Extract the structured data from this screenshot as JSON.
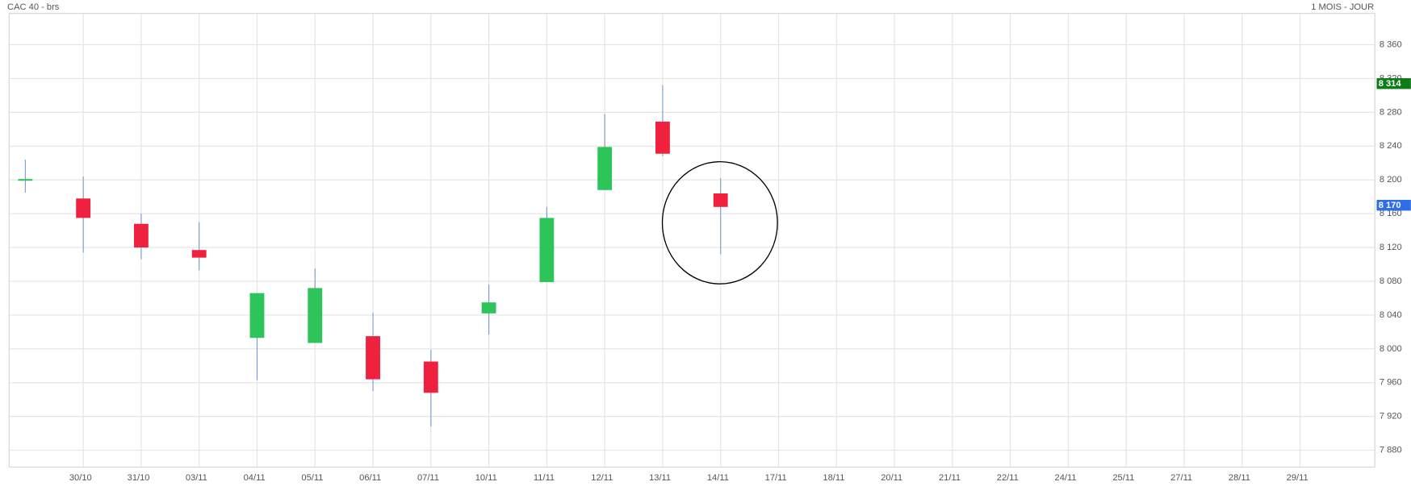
{
  "chart_data": {
    "type": "candlestick",
    "title": "CAC 40 - brs",
    "subtitle": "1 MOIS - JOUR",
    "categories": [
      null,
      "30/10",
      "31/10",
      "03/11",
      "04/11",
      "05/11",
      "06/11",
      "07/11",
      "10/11",
      "11/11",
      "12/11",
      "13/11",
      "14/11",
      "17/11",
      "18/11",
      "20/11",
      "21/11",
      "22/11",
      "24/11",
      "25/11",
      "27/11",
      "28/11",
      "29/11"
    ],
    "series": {
      "open": [
        8199,
        8178,
        8148,
        8117,
        8013,
        8007,
        8015,
        7985,
        8042,
        8079,
        8188,
        8269,
        8184,
        null,
        null,
        null,
        null,
        null,
        null,
        null,
        null,
        null,
        null
      ],
      "high": [
        8224,
        8204,
        8160,
        8150,
        8066,
        8095,
        8043,
        7999,
        8076,
        8168,
        8278,
        8312,
        8202,
        null,
        null,
        null,
        null,
        null,
        null,
        null,
        null,
        null,
        null
      ],
      "low": [
        8185,
        8114,
        8106,
        8093,
        7963,
        8007,
        7950,
        7908,
        8017,
        8079,
        8188,
        8228,
        8112,
        null,
        null,
        null,
        null,
        null,
        null,
        null,
        null,
        null,
        null
      ],
      "close": [
        8201,
        8155,
        8120,
        8108,
        8066,
        8072,
        7964,
        7948,
        8055,
        8155,
        8239,
        8231,
        8168,
        null,
        null,
        null,
        null,
        null,
        null,
        null,
        null,
        null,
        null
      ]
    },
    "up_color": "#2dc55a",
    "down_color": "#f0203f",
    "wick_color": "#7a9cc6",
    "ylim": [
      7860,
      8397
    ],
    "yticks": [
      {
        "value": 7880,
        "label": "7 880"
      },
      {
        "value": 7920,
        "label": "7 920"
      },
      {
        "value": 7960,
        "label": "7 960"
      },
      {
        "value": 8000,
        "label": "8 000"
      },
      {
        "value": 8040,
        "label": "8 040"
      },
      {
        "value": 8080,
        "label": "8 080"
      },
      {
        "value": 8120,
        "label": "8 120"
      },
      {
        "value": 8160,
        "label": "8 160"
      },
      {
        "value": 8200,
        "label": "8 200"
      },
      {
        "value": 8240,
        "label": "8 240"
      },
      {
        "value": 8280,
        "label": "8 280"
      },
      {
        "value": 8320,
        "label": "8 320"
      },
      {
        "value": 8360,
        "label": "8 360"
      }
    ],
    "price_tags": [
      {
        "value": 8314,
        "label": "8 314",
        "color": "#0a7d14"
      },
      {
        "value": 8170,
        "label": "8 170",
        "color": "#2f6ee8"
      }
    ],
    "grid": true
  }
}
